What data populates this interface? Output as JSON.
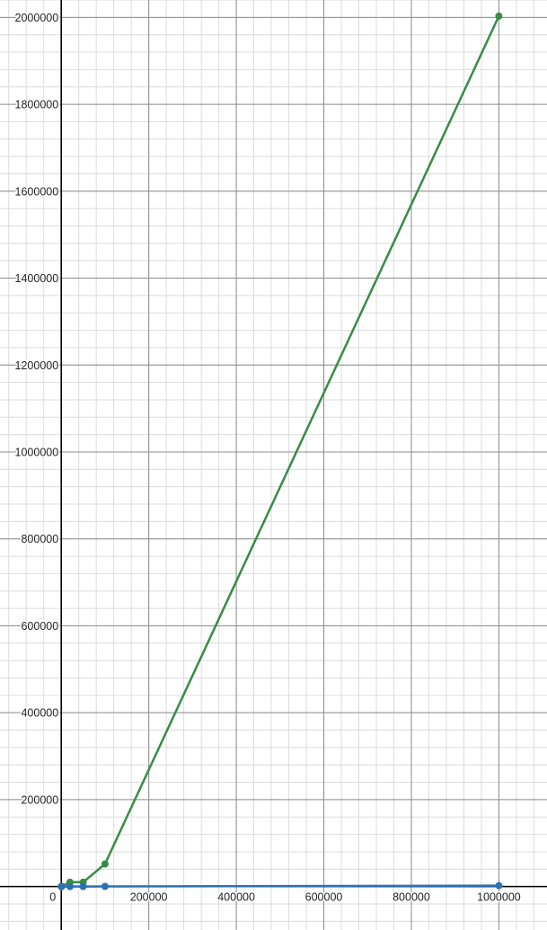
{
  "chart_data": {
    "type": "line",
    "title": "",
    "xlabel": "",
    "ylabel": "",
    "xlim": [
      -140000,
      1110000
    ],
    "ylim": [
      -100000,
      2040000
    ],
    "grid": true,
    "x_ticks": [
      0,
      200000,
      400000,
      600000,
      800000,
      1000000
    ],
    "x_tick_labels": [
      "0",
      "200000",
      "400000",
      "600000",
      "800000",
      "1000000"
    ],
    "y_ticks": [
      200000,
      400000,
      600000,
      800000,
      1000000,
      1200000,
      1400000,
      1600000,
      1800000,
      2000000
    ],
    "y_tick_labels": [
      "200000",
      "400000",
      "600000",
      "800000",
      "1000000",
      "1200000",
      "1400000",
      "1600000",
      "1800000",
      "2000000"
    ],
    "series": [
      {
        "color": "#388c46",
        "points": [
          {
            "x": 0,
            "y": 0
          },
          {
            "x": 1000,
            "y": 500
          },
          {
            "x": 20000,
            "y": 10000
          },
          {
            "x": 50000,
            "y": 10000
          },
          {
            "x": 100000,
            "y": 52000
          },
          {
            "x": 1000000,
            "y": 2003000
          }
        ]
      },
      {
        "color": "#2d70b3",
        "points": [
          {
            "x": 0,
            "y": 0
          },
          {
            "x": 1000,
            "y": 0
          },
          {
            "x": 20000,
            "y": 0
          },
          {
            "x": 50000,
            "y": 0
          },
          {
            "x": 100000,
            "y": 300
          },
          {
            "x": 1000000,
            "y": 2000
          }
        ]
      }
    ]
  }
}
